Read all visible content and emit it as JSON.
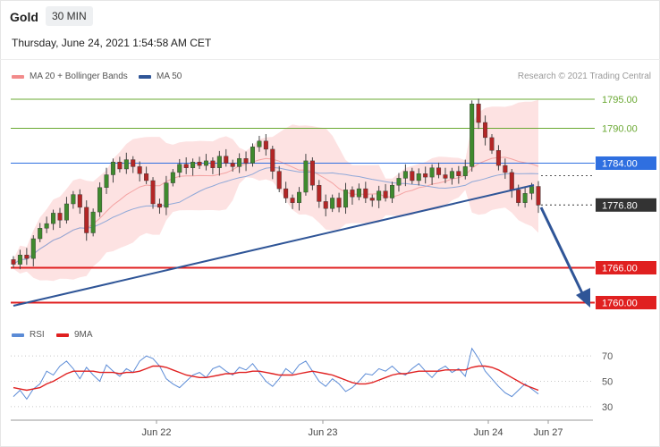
{
  "header": {
    "instrument": "Gold",
    "timeframe": "30 MIN",
    "datetime": "Thursday, June 24, 2021 1:54:58 AM CET"
  },
  "price_legend": {
    "ma20_label": "MA 20 + Bollinger Bands",
    "ma50_label": "MA 50",
    "ma20_color": "#f28b8b",
    "ma50_color": "#2f5597",
    "copyright": "Research © 2021 Trading Central"
  },
  "rsi_legend": {
    "rsi_label": "RSI",
    "ma_label": "9MA",
    "rsi_color": "#5b8bd6",
    "ma_color": "#e02020"
  },
  "chart_data": [
    {
      "type": "candlestick",
      "ylim": [
        1757,
        1797
      ],
      "levels": [
        {
          "value": 1795.0,
          "label": "1795.00",
          "kind": "target",
          "color": "#6aa832"
        },
        {
          "value": 1790.0,
          "label": "1790.00",
          "kind": "target",
          "color": "#6aa832"
        },
        {
          "value": 1784.0,
          "label": "1784.00",
          "kind": "pivot",
          "color": "#2f6fe0"
        },
        {
          "value": 1776.8,
          "label": "1776.80",
          "kind": "last",
          "color": "#333333"
        },
        {
          "value": 1766.0,
          "label": "1766.00",
          "kind": "support",
          "color": "#e02020"
        },
        {
          "value": 1760.0,
          "label": "1760.00",
          "kind": "support",
          "color": "#e02020"
        }
      ],
      "x_labels": [
        "Jun 22",
        "Jun 23",
        "Jun 24",
        "Jun 27"
      ],
      "candles": [
        [
          1767.4,
          1766.6
        ],
        [
          1766.6,
          1768.2
        ],
        [
          1768.2,
          1767.6
        ],
        [
          1767.6,
          1771.0
        ],
        [
          1771.0,
          1772.8
        ],
        [
          1772.8,
          1773.6
        ],
        [
          1773.6,
          1775.4
        ],
        [
          1775.4,
          1774.2
        ],
        [
          1774.2,
          1777.0
        ],
        [
          1777.0,
          1778.6
        ],
        [
          1778.6,
          1776.4
        ],
        [
          1776.4,
          1772.0
        ],
        [
          1772.0,
          1775.6
        ],
        [
          1775.6,
          1779.8
        ],
        [
          1779.8,
          1782.0
        ],
        [
          1782.0,
          1784.2
        ],
        [
          1784.2,
          1783.0
        ],
        [
          1783.0,
          1784.6
        ],
        [
          1784.6,
          1783.4
        ],
        [
          1783.4,
          1782.2
        ],
        [
          1782.2,
          1781.0
        ],
        [
          1781.0,
          1777.0
        ],
        [
          1777.0,
          1776.4
        ],
        [
          1776.4,
          1780.6
        ],
        [
          1780.6,
          1782.4
        ],
        [
          1782.4,
          1783.8
        ],
        [
          1783.8,
          1783.2
        ],
        [
          1783.2,
          1784.2
        ],
        [
          1784.2,
          1783.6
        ],
        [
          1783.6,
          1784.4
        ],
        [
          1784.4,
          1783.2
        ],
        [
          1783.2,
          1785.2
        ],
        [
          1785.2,
          1784.0
        ],
        [
          1784.0,
          1783.4
        ],
        [
          1783.4,
          1784.8
        ],
        [
          1784.8,
          1784.0
        ],
        [
          1784.0,
          1786.8
        ],
        [
          1786.8,
          1787.8
        ],
        [
          1787.8,
          1786.4
        ],
        [
          1786.4,
          1782.6
        ],
        [
          1782.6,
          1779.6
        ],
        [
          1779.6,
          1778.0
        ],
        [
          1778.0,
          1777.2
        ],
        [
          1777.2,
          1779.0
        ],
        [
          1779.0,
          1784.4
        ],
        [
          1784.4,
          1780.2
        ],
        [
          1780.2,
          1777.4
        ],
        [
          1777.4,
          1776.2
        ],
        [
          1776.2,
          1778.0
        ],
        [
          1778.0,
          1776.4
        ],
        [
          1776.4,
          1779.4
        ],
        [
          1779.4,
          1778.2
        ],
        [
          1778.2,
          1779.6
        ],
        [
          1779.6,
          1778.0
        ],
        [
          1778.0,
          1777.6
        ],
        [
          1777.6,
          1779.2
        ],
        [
          1779.2,
          1778.0
        ],
        [
          1778.0,
          1780.2
        ],
        [
          1780.2,
          1781.4
        ],
        [
          1781.4,
          1782.6
        ],
        [
          1782.6,
          1781.0
        ],
        [
          1781.0,
          1782.2
        ],
        [
          1782.2,
          1781.6
        ],
        [
          1781.6,
          1783.2
        ],
        [
          1783.2,
          1782.0
        ],
        [
          1782.0,
          1781.4
        ],
        [
          1781.4,
          1782.6
        ],
        [
          1782.6,
          1781.8
        ],
        [
          1781.8,
          1783.4
        ],
        [
          1783.4,
          1794.2
        ],
        [
          1794.2,
          1791.0
        ],
        [
          1791.0,
          1788.4
        ],
        [
          1788.4,
          1786.2
        ],
        [
          1786.2,
          1783.6
        ],
        [
          1783.6,
          1782.4
        ],
        [
          1782.4,
          1779.4
        ],
        [
          1779.4,
          1777.2
        ],
        [
          1777.2,
          1778.8
        ],
        [
          1778.8,
          1780.0
        ],
        [
          1780.0,
          1776.8
        ]
      ]
    },
    {
      "type": "line",
      "title": "RSI",
      "ylim": [
        25,
        80
      ],
      "y_ticks": [
        30,
        50,
        70
      ],
      "series": [
        {
          "name": "RSI",
          "values": [
            38,
            43,
            36,
            44,
            48,
            58,
            55,
            62,
            66,
            60,
            52,
            61,
            55,
            50,
            63,
            58,
            54,
            60,
            57,
            66,
            70,
            68,
            62,
            52,
            48,
            45,
            50,
            55,
            57,
            53,
            60,
            62,
            58,
            55,
            61,
            59,
            64,
            57,
            50,
            46,
            52,
            60,
            56,
            63,
            66,
            58,
            50,
            46,
            52,
            48,
            42,
            45,
            50,
            56,
            55,
            60,
            58,
            62,
            57,
            55,
            60,
            64,
            58,
            53,
            59,
            62,
            57,
            60,
            54,
            76,
            68,
            58,
            52,
            46,
            41,
            38,
            43,
            48,
            44,
            40
          ]
        },
        {
          "name": "9MA",
          "values": [
            45,
            44,
            43,
            44,
            45,
            48,
            50,
            53,
            56,
            58,
            58,
            58,
            58,
            57,
            57,
            57,
            56,
            57,
            57,
            58,
            60,
            62,
            62,
            61,
            59,
            57,
            55,
            54,
            53,
            53,
            54,
            55,
            56,
            56,
            57,
            57,
            58,
            58,
            57,
            56,
            55,
            55,
            55,
            56,
            57,
            58,
            57,
            56,
            55,
            53,
            51,
            49,
            48,
            48,
            49,
            51,
            53,
            55,
            56,
            56,
            57,
            58,
            58,
            58,
            58,
            59,
            59,
            59,
            59,
            61,
            62,
            62,
            61,
            59,
            56,
            53,
            50,
            47,
            45,
            43
          ]
        }
      ]
    }
  ]
}
